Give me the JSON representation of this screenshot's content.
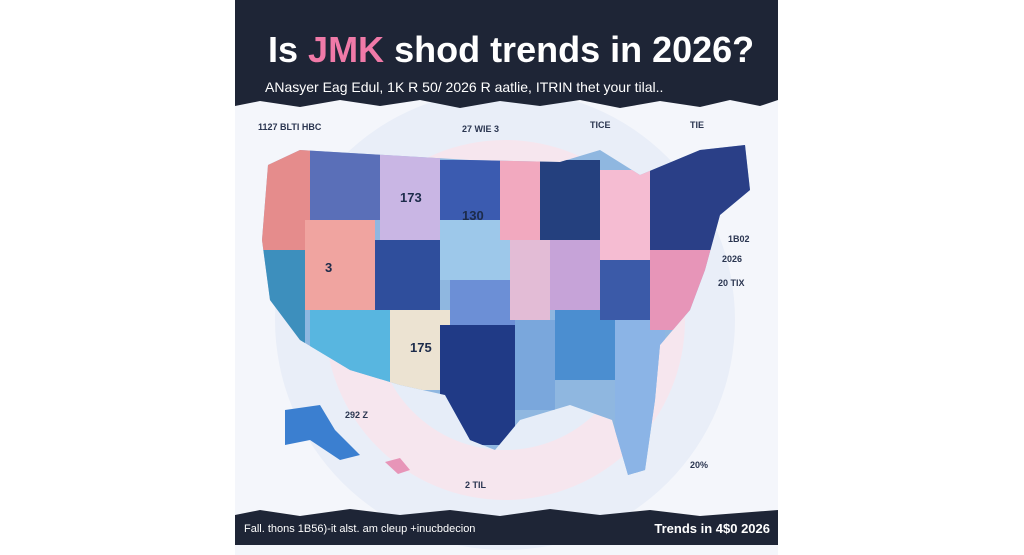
{
  "header": {
    "title_parts": [
      "Is",
      "JMK",
      "shod trends in 2026?"
    ],
    "subtitle": "ANasyer Eag Edul, 1K R 50/ 2026 R aatlie, ITRIN thet your tilal.."
  },
  "labels": [
    "1127 BLTI HBC",
    "27 WIE 3",
    "TICE",
    "TIE",
    "1B02",
    "2026",
    "20 TIX",
    "292 Z",
    "20%",
    "2 TIL",
    "173",
    "130",
    "3",
    "175"
  ],
  "footer": {
    "left": "Fall. thons 1B56)-it alst. am cleup +inucbdecion",
    "right": "Trends in 4$0 2026"
  }
}
